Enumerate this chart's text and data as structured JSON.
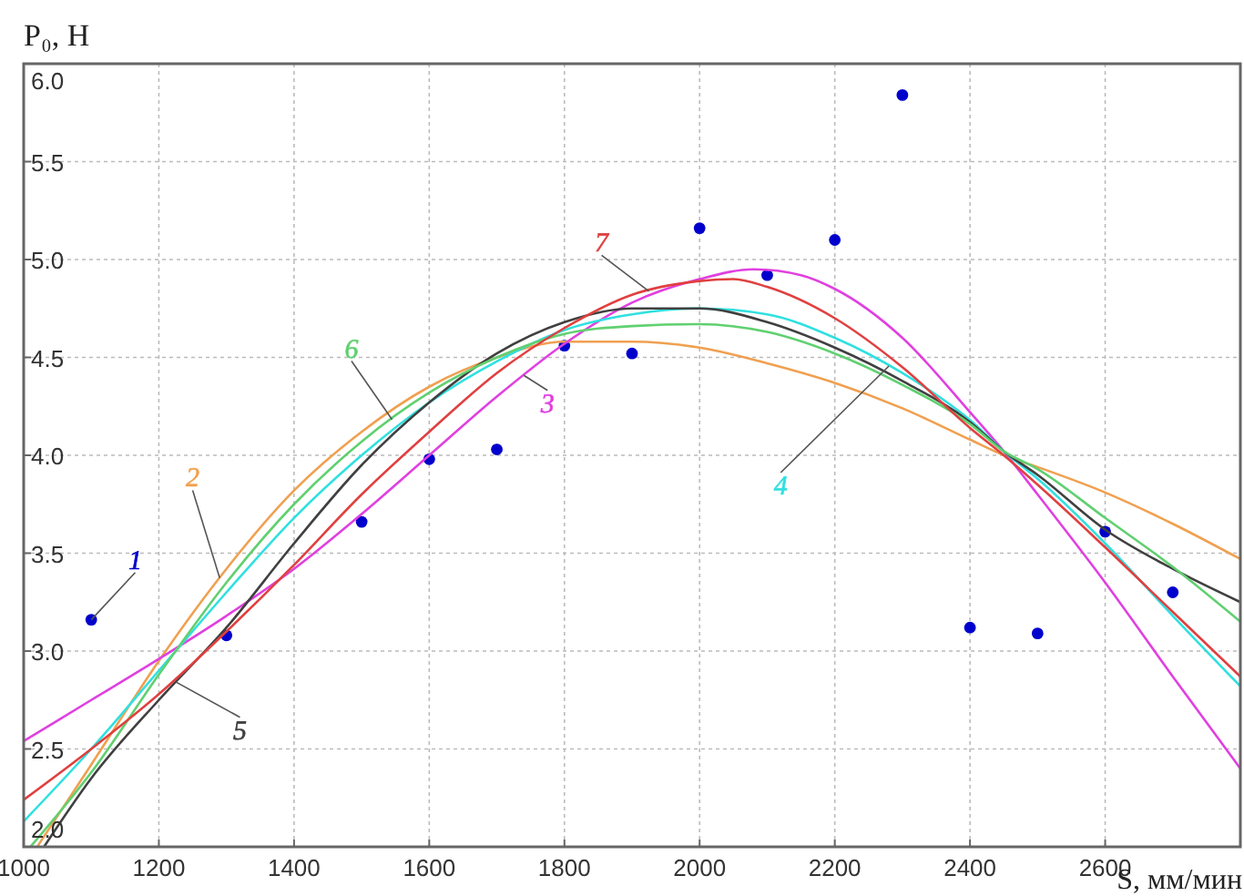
{
  "chart_data": {
    "type": "line",
    "xlabel": "S, мм/мин",
    "ylabel": "P₀, Н",
    "xlim": [
      1000,
      2800
    ],
    "ylim": [
      2,
      6
    ],
    "xticks": [
      1000,
      1200,
      1400,
      1600,
      1800,
      2000,
      2200,
      2400,
      2600
    ],
    "yticks": [
      {
        "value": 2,
        "label": "2.0"
      },
      {
        "value": 2.5,
        "label": "2.5"
      },
      {
        "value": 3,
        "label": "3.0"
      },
      {
        "value": 3.5,
        "label": "3.5"
      },
      {
        "value": 4,
        "label": "4.0"
      },
      {
        "value": 4.5,
        "label": "4.5"
      },
      {
        "value": 5,
        "label": "5.0"
      },
      {
        "value": 5.5,
        "label": "5.5"
      },
      {
        "value": 6,
        "label": "6.0"
      }
    ],
    "grid": true,
    "series": [
      {
        "name": "1",
        "type": "scatter",
        "marker": "circle",
        "color": "#0000cc",
        "x": [
          1100,
          1300,
          1500,
          1600,
          1700,
          1800,
          1900,
          2000,
          2100,
          2200,
          2300,
          2400,
          2500,
          2600,
          2700
        ],
        "values": [
          3.16,
          3.08,
          3.66,
          3.98,
          4.03,
          4.56,
          4.52,
          5.16,
          4.92,
          5.1,
          5.84,
          3.12,
          3.09,
          3.61,
          3.3
        ]
      },
      {
        "name": "2",
        "color": "#f0a050",
        "x": [
          1020,
          1100,
          1200,
          1300,
          1400,
          1500,
          1600,
          1700,
          1800,
          1900,
          2000,
          2100,
          2200,
          2300,
          2400,
          2450,
          2500,
          2600,
          2700,
          2800
        ],
        "values": [
          2.0,
          2.42,
          2.95,
          3.42,
          3.82,
          4.12,
          4.35,
          4.5,
          4.58,
          4.58,
          4.55,
          4.47,
          4.37,
          4.24,
          4.08,
          4.0,
          3.94,
          3.81,
          3.65,
          3.47
        ]
      },
      {
        "name": "3",
        "color": "#e040e0",
        "x": [
          1000,
          1100,
          1200,
          1300,
          1400,
          1500,
          1600,
          1700,
          1800,
          1900,
          2000,
          2080,
          2150,
          2200,
          2300,
          2400,
          2450,
          2500,
          2600,
          2700,
          2800
        ],
        "values": [
          2.54,
          2.75,
          2.96,
          3.18,
          3.42,
          3.7,
          4.0,
          4.3,
          4.57,
          4.78,
          4.9,
          4.95,
          4.92,
          4.85,
          4.6,
          4.22,
          4.02,
          3.8,
          3.35,
          2.87,
          2.4
        ]
      },
      {
        "name": "4",
        "color": "#30e0e0",
        "x": [
          1000,
          1100,
          1200,
          1300,
          1400,
          1500,
          1600,
          1700,
          1800,
          1900,
          2000,
          2100,
          2200,
          2300,
          2400,
          2450,
          2500,
          2600,
          2700,
          2800
        ],
        "values": [
          2.13,
          2.5,
          2.9,
          3.3,
          3.68,
          4.0,
          4.27,
          4.48,
          4.64,
          4.72,
          4.75,
          4.72,
          4.6,
          4.42,
          4.18,
          4.02,
          3.88,
          3.55,
          3.18,
          2.82
        ]
      },
      {
        "name": "5",
        "color": "#404040",
        "x": [
          1030,
          1100,
          1200,
          1300,
          1400,
          1500,
          1600,
          1700,
          1800,
          1900,
          2000,
          2100,
          2200,
          2300,
          2400,
          2450,
          2500,
          2600,
          2700,
          2800
        ],
        "values": [
          2.0,
          2.35,
          2.75,
          3.12,
          3.55,
          3.95,
          4.27,
          4.52,
          4.68,
          4.75,
          4.75,
          4.68,
          4.55,
          4.38,
          4.17,
          4.02,
          3.9,
          3.62,
          3.42,
          3.25
        ]
      },
      {
        "name": "6",
        "color": "#60d070",
        "x": [
          1010,
          1100,
          1200,
          1300,
          1400,
          1500,
          1600,
          1700,
          1800,
          1900,
          2000,
          2100,
          2200,
          2300,
          2400,
          2450,
          2500,
          2600,
          2700,
          2800
        ],
        "values": [
          2.0,
          2.38,
          2.88,
          3.35,
          3.75,
          4.07,
          4.32,
          4.5,
          4.62,
          4.66,
          4.67,
          4.63,
          4.52,
          4.36,
          4.16,
          4.02,
          3.93,
          3.68,
          3.43,
          3.15
        ]
      },
      {
        "name": "7",
        "color": "#e04040",
        "x": [
          1000,
          1100,
          1200,
          1300,
          1400,
          1500,
          1600,
          1700,
          1800,
          1900,
          2000,
          2050,
          2100,
          2200,
          2300,
          2400,
          2450,
          2500,
          2600,
          2700,
          2800
        ],
        "values": [
          2.24,
          2.5,
          2.78,
          3.1,
          3.44,
          3.8,
          4.12,
          4.42,
          4.65,
          4.82,
          4.89,
          4.9,
          4.86,
          4.7,
          4.45,
          4.14,
          4.0,
          3.85,
          3.53,
          3.2,
          2.87
        ]
      }
    ]
  }
}
